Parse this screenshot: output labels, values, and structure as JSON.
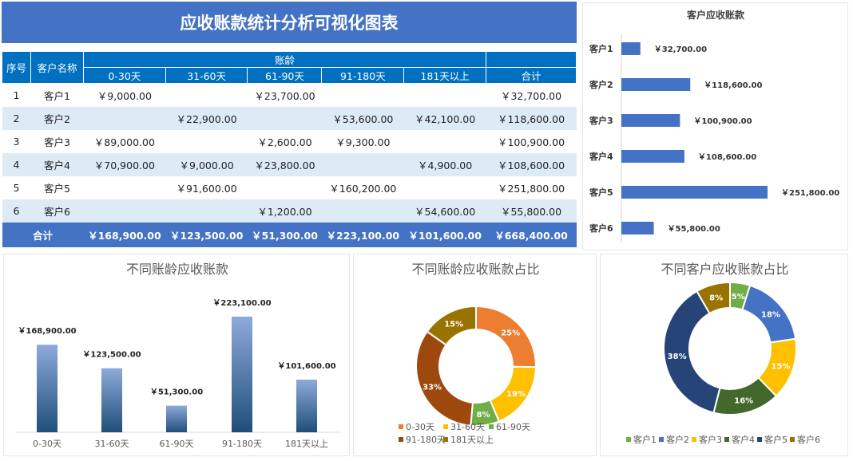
{
  "title": "应收账款统计分析可视化图表",
  "table": {
    "headers": {
      "index": "序号",
      "customer": "客户名称",
      "aging": "账龄",
      "total": "合计",
      "buckets": [
        "0-30天",
        "31-60天",
        "61-90天",
        "91-180天",
        "181天以上"
      ]
    },
    "rows": [
      {
        "index": "1",
        "customer": "客户1",
        "values": [
          "￥9,000.00",
          "",
          "￥23,700.00",
          "",
          ""
        ],
        "total": "￥32,700.00"
      },
      {
        "index": "2",
        "customer": "客户2",
        "values": [
          "",
          "￥22,900.00",
          "",
          "￥53,600.00",
          "￥42,100.00"
        ],
        "total": "￥118,600.00"
      },
      {
        "index": "3",
        "customer": "客户3",
        "values": [
          "￥89,000.00",
          "",
          "￥2,600.00",
          "￥9,300.00",
          ""
        ],
        "total": "￥100,900.00"
      },
      {
        "index": "4",
        "customer": "客户4",
        "values": [
          "￥70,900.00",
          "￥9,000.00",
          "￥23,800.00",
          "",
          "￥4,900.00"
        ],
        "total": "￥108,600.00"
      },
      {
        "index": "5",
        "customer": "客户5",
        "values": [
          "",
          "￥91,600.00",
          "",
          "￥160,200.00",
          ""
        ],
        "total": "￥251,800.00"
      },
      {
        "index": "6",
        "customer": "客户6",
        "values": [
          "",
          "",
          "￥1,200.00",
          "",
          "￥54,600.00"
        ],
        "total": "￥55,800.00"
      }
    ],
    "total_row": {
      "label": "合计",
      "values": [
        "￥168,900.00",
        "￥123,500.00",
        "￥51,300.00",
        "￥223,100.00",
        "￥101,600.00"
      ],
      "total": "￥668,400.00"
    }
  },
  "chart_data": [
    {
      "type": "bar",
      "orientation": "horizontal",
      "title": "客户应收账款",
      "categories": [
        "客户1",
        "客户2",
        "客户3",
        "客户4",
        "客户5",
        "客户6"
      ],
      "values": [
        32700,
        118600,
        100900,
        108600,
        251800,
        55800
      ],
      "labels": [
        "￥32,700.00",
        "￥118,600.00",
        "￥100,900.00",
        "￥108,600.00",
        "￥251,800.00",
        "￥55,800.00"
      ],
      "color": "#4472c4"
    },
    {
      "type": "bar",
      "title": "不同账龄应收账款",
      "categories": [
        "0-30天",
        "31-60天",
        "61-90天",
        "91-180天",
        "181天以上"
      ],
      "values": [
        168900,
        123500,
        51300,
        223100,
        101600
      ],
      "labels": [
        "￥168,900.00",
        "￥123,500.00",
        "￥51,300.00",
        "￥223,100.00",
        "￥101,600.00"
      ],
      "color": "#2f5f9e"
    },
    {
      "type": "pie",
      "donut": true,
      "title": "不同账龄应收账款占比",
      "categories": [
        "0-30天",
        "31-60天",
        "61-90天",
        "91-180天",
        "181天以上"
      ],
      "values": [
        168900,
        123500,
        51300,
        223100,
        101600
      ],
      "labels": [
        "25%",
        "19%",
        "8%",
        "33%",
        "15%"
      ],
      "colors": [
        "#ed7d31",
        "#ffc000",
        "#70ad47",
        "#9e480e",
        "#997300"
      ],
      "legend": "bottom"
    },
    {
      "type": "pie",
      "donut": true,
      "title": "不同客户应收账款占比",
      "categories": [
        "客户1",
        "客户2",
        "客户3",
        "客户4",
        "客户5",
        "客户6"
      ],
      "values": [
        32700,
        118600,
        100900,
        108600,
        251800,
        55800
      ],
      "labels": [
        "5%",
        "18%",
        "15%",
        "16%",
        "38%",
        "8%"
      ],
      "colors": [
        "#70ad47",
        "#4472c4",
        "#ffc000",
        "#43682b",
        "#264478",
        "#997300"
      ],
      "legend": "bottom"
    }
  ]
}
